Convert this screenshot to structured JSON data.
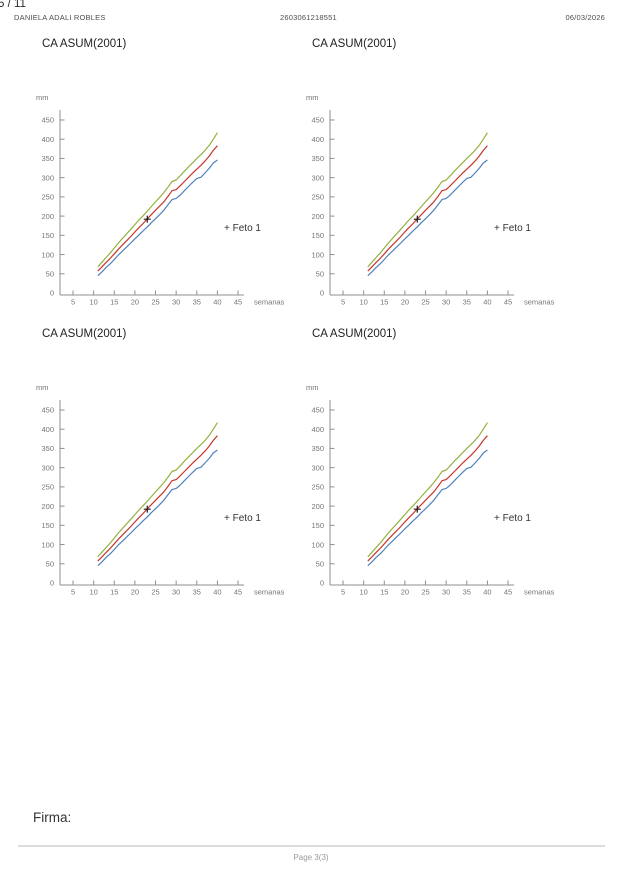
{
  "header": {
    "page_indicator": "5 / 11",
    "patient_name": "DANIELA ADALI ROBLES",
    "patient_id": "2603061218551",
    "date": "06/03/2026"
  },
  "footer": {
    "signature_label": "Firma:",
    "page_label": "Page 3(3)"
  },
  "chart_data": [
    {
      "type": "line",
      "title": "CA ASUM(2001)",
      "ylabel": "mm",
      "xlabel": "semanas",
      "xticks": [
        5,
        10,
        15,
        20,
        25,
        30,
        35,
        40,
        45
      ],
      "yticks": [
        0,
        50,
        100,
        150,
        200,
        250,
        300,
        350,
        400,
        450
      ],
      "xlim": [
        0,
        47
      ],
      "ylim": [
        0,
        470
      ],
      "x_weeks": [
        11,
        12,
        13,
        14,
        15,
        16,
        17,
        18,
        19,
        20,
        21,
        22,
        23,
        24,
        25,
        26,
        27,
        28,
        29,
        30,
        31,
        32,
        33,
        34,
        35,
        36,
        37,
        38,
        39,
        40
      ],
      "series": [
        {
          "name": "percentile-high",
          "color": "#94b13f",
          "values": [
            68,
            80,
            92,
            104,
            117,
            130,
            142,
            154,
            166,
            178,
            190,
            201,
            213,
            225,
            237,
            249,
            261,
            275,
            290,
            294,
            305,
            317,
            328,
            339,
            350,
            360,
            371,
            384,
            400,
            417
          ]
        },
        {
          "name": "percentile-mid",
          "color": "#c4372b",
          "values": [
            57,
            68,
            79,
            90,
            102,
            114,
            125,
            136,
            147,
            159,
            170,
            181,
            193,
            204,
            215,
            226,
            237,
            251,
            266,
            269,
            279,
            290,
            301,
            312,
            322,
            332,
            343,
            356,
            371,
            383
          ]
        },
        {
          "name": "percentile-low",
          "color": "#4f81bd",
          "values": [
            45,
            55,
            66,
            76,
            87,
            99,
            109,
            120,
            130,
            141,
            151,
            162,
            172,
            183,
            193,
            204,
            215,
            229,
            243,
            246,
            255,
            266,
            277,
            288,
            298,
            301,
            312,
            324,
            338,
            346
          ]
        }
      ],
      "marker": {
        "x": 23,
        "y": 192,
        "symbol": "+",
        "color": "#1a1a1a"
      },
      "legend": {
        "label": "+ Feto 1",
        "position": "right-middle"
      }
    },
    {
      "type": "line",
      "title": "CA ASUM(2001)",
      "ylabel": "mm",
      "xlabel": "semanas",
      "xticks": [
        5,
        10,
        15,
        20,
        25,
        30,
        35,
        40,
        45
      ],
      "yticks": [
        0,
        50,
        100,
        150,
        200,
        250,
        300,
        350,
        400,
        450
      ],
      "xlim": [
        0,
        47
      ],
      "ylim": [
        0,
        470
      ],
      "x_weeks": [
        11,
        12,
        13,
        14,
        15,
        16,
        17,
        18,
        19,
        20,
        21,
        22,
        23,
        24,
        25,
        26,
        27,
        28,
        29,
        30,
        31,
        32,
        33,
        34,
        35,
        36,
        37,
        38,
        39,
        40
      ],
      "series": [
        {
          "name": "percentile-high",
          "color": "#94b13f",
          "values": [
            68,
            80,
            92,
            104,
            117,
            130,
            142,
            154,
            166,
            178,
            190,
            201,
            213,
            225,
            237,
            249,
            261,
            275,
            290,
            294,
            305,
            317,
            328,
            339,
            350,
            360,
            371,
            384,
            400,
            417
          ]
        },
        {
          "name": "percentile-mid",
          "color": "#c4372b",
          "values": [
            57,
            68,
            79,
            90,
            102,
            114,
            125,
            136,
            147,
            159,
            170,
            181,
            193,
            204,
            215,
            226,
            237,
            251,
            266,
            269,
            279,
            290,
            301,
            312,
            322,
            332,
            343,
            356,
            371,
            383
          ]
        },
        {
          "name": "percentile-low",
          "color": "#4f81bd",
          "values": [
            45,
            55,
            66,
            76,
            87,
            99,
            109,
            120,
            130,
            141,
            151,
            162,
            172,
            183,
            193,
            204,
            215,
            229,
            243,
            246,
            255,
            266,
            277,
            288,
            298,
            301,
            312,
            324,
            338,
            346
          ]
        }
      ],
      "marker": {
        "x": 23,
        "y": 192,
        "symbol": "+",
        "color": "#1a1a1a"
      },
      "legend": {
        "label": "+ Feto 1",
        "position": "right-middle"
      }
    },
    {
      "type": "line",
      "title": "CA ASUM(2001)",
      "ylabel": "mm",
      "xlabel": "semanas",
      "xticks": [
        5,
        10,
        15,
        20,
        25,
        30,
        35,
        40,
        45
      ],
      "yticks": [
        0,
        50,
        100,
        150,
        200,
        250,
        300,
        350,
        400,
        450
      ],
      "xlim": [
        0,
        47
      ],
      "ylim": [
        0,
        470
      ],
      "x_weeks": [
        11,
        12,
        13,
        14,
        15,
        16,
        17,
        18,
        19,
        20,
        21,
        22,
        23,
        24,
        25,
        26,
        27,
        28,
        29,
        30,
        31,
        32,
        33,
        34,
        35,
        36,
        37,
        38,
        39,
        40
      ],
      "series": [
        {
          "name": "percentile-high",
          "color": "#94b13f",
          "values": [
            68,
            80,
            92,
            104,
            117,
            130,
            142,
            154,
            166,
            178,
            190,
            201,
            213,
            225,
            237,
            249,
            261,
            275,
            290,
            294,
            305,
            317,
            328,
            339,
            350,
            360,
            371,
            384,
            400,
            417
          ]
        },
        {
          "name": "percentile-mid",
          "color": "#c4372b",
          "values": [
            57,
            68,
            79,
            90,
            102,
            114,
            125,
            136,
            147,
            159,
            170,
            181,
            193,
            204,
            215,
            226,
            237,
            251,
            266,
            269,
            279,
            290,
            301,
            312,
            322,
            332,
            343,
            356,
            371,
            383
          ]
        },
        {
          "name": "percentile-low",
          "color": "#4f81bd",
          "values": [
            45,
            55,
            66,
            76,
            87,
            99,
            109,
            120,
            130,
            141,
            151,
            162,
            172,
            183,
            193,
            204,
            215,
            229,
            243,
            246,
            255,
            266,
            277,
            288,
            298,
            301,
            312,
            324,
            338,
            346
          ]
        }
      ],
      "marker": {
        "x": 23,
        "y": 192,
        "symbol": "+",
        "color": "#1a1a1a"
      },
      "legend": {
        "label": "+ Feto 1",
        "position": "right-middle"
      }
    },
    {
      "type": "line",
      "title": "CA ASUM(2001)",
      "ylabel": "mm",
      "xlabel": "semanas",
      "xticks": [
        5,
        10,
        15,
        20,
        25,
        30,
        35,
        40,
        45
      ],
      "yticks": [
        0,
        50,
        100,
        150,
        200,
        250,
        300,
        350,
        400,
        450
      ],
      "xlim": [
        0,
        47
      ],
      "ylim": [
        0,
        470
      ],
      "x_weeks": [
        11,
        12,
        13,
        14,
        15,
        16,
        17,
        18,
        19,
        20,
        21,
        22,
        23,
        24,
        25,
        26,
        27,
        28,
        29,
        30,
        31,
        32,
        33,
        34,
        35,
        36,
        37,
        38,
        39,
        40
      ],
      "series": [
        {
          "name": "percentile-high",
          "color": "#94b13f",
          "values": [
            68,
            80,
            92,
            104,
            117,
            130,
            142,
            154,
            166,
            178,
            190,
            201,
            213,
            225,
            237,
            249,
            261,
            275,
            290,
            294,
            305,
            317,
            328,
            339,
            350,
            360,
            371,
            384,
            400,
            417
          ]
        },
        {
          "name": "percentile-mid",
          "color": "#c4372b",
          "values": [
            57,
            68,
            79,
            90,
            102,
            114,
            125,
            136,
            147,
            159,
            170,
            181,
            193,
            204,
            215,
            226,
            237,
            251,
            266,
            269,
            279,
            290,
            301,
            312,
            322,
            332,
            343,
            356,
            371,
            383
          ]
        },
        {
          "name": "percentile-low",
          "color": "#4f81bd",
          "values": [
            45,
            55,
            66,
            76,
            87,
            99,
            109,
            120,
            130,
            141,
            151,
            162,
            172,
            183,
            193,
            204,
            215,
            229,
            243,
            246,
            255,
            266,
            277,
            288,
            298,
            301,
            312,
            324,
            338,
            346
          ]
        }
      ],
      "marker": {
        "x": 23,
        "y": 192,
        "symbol": "+",
        "color": "#1a1a1a"
      },
      "legend": {
        "label": "+ Feto 1",
        "position": "right-middle"
      }
    }
  ],
  "style": {
    "axis_color": "#8f8f8f",
    "tick_label_color": "#757575",
    "legend_color": "#333333"
  }
}
